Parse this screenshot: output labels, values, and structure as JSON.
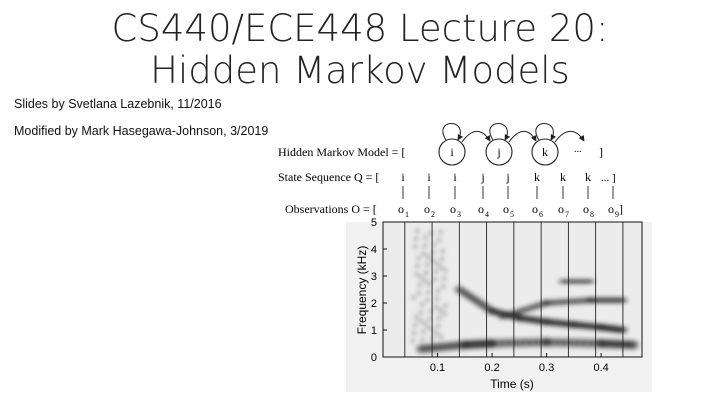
{
  "slide": {
    "title_line1": "CS440/ECE448 Lecture 20:",
    "title_line2": "Hidden Markov Models",
    "credit1": "Slides by Svetlana Lazebnik, 11/2016",
    "credit2": "Modified by Mark Hasegawa-Johnson, 3/2019"
  },
  "figure": {
    "hmm_label": "Hidden Markov Model = [",
    "hmm_close": "]",
    "states": [
      "i",
      "j",
      "k"
    ],
    "ellipsis": "...",
    "state_seq_label": "State Sequence Q = [",
    "state_seq": [
      "i",
      "i",
      "i",
      "j",
      "j",
      "k",
      "k",
      "k"
    ],
    "state_seq_end": "... ]",
    "obs_label": "Observations  O = [",
    "obs_letter": "o",
    "obs_subscripts": [
      "1",
      "2",
      "3",
      "4",
      "5",
      "6",
      "7",
      "8",
      "9"
    ],
    "obs_close": "]"
  },
  "chart_data": {
    "type": "heatmap",
    "xlabel": "Time (s)",
    "ylabel": "Frequency (kHz)",
    "xticks": [
      "0.1",
      "0.2",
      "0.3",
      "0.4"
    ],
    "yticks": [
      "0",
      "1",
      "2",
      "3",
      "4",
      "5"
    ],
    "xlim": [
      0,
      0.475
    ],
    "ylim": [
      0,
      5
    ],
    "frame_boundaries_s": [
      0.04,
      0.09,
      0.14,
      0.19,
      0.24,
      0.29,
      0.34,
      0.39,
      0.44
    ],
    "formant_tracks_khz": [
      {
        "t": [
          0.07,
          0.15,
          0.2,
          0.3,
          0.4,
          0.46
        ],
        "f": [
          0.3,
          0.45,
          0.5,
          0.55,
          0.5,
          0.45
        ]
      },
      {
        "t": [
          0.14,
          0.2,
          0.25,
          0.3,
          0.35,
          0.4,
          0.44
        ],
        "f": [
          2.5,
          1.7,
          1.45,
          1.3,
          1.2,
          1.1,
          1.0
        ]
      },
      {
        "t": [
          0.22,
          0.3,
          0.38,
          0.44
        ],
        "f": [
          1.5,
          2.0,
          2.1,
          2.1
        ]
      },
      {
        "t": [
          0.33,
          0.38
        ],
        "f": [
          2.8,
          2.8
        ]
      }
    ]
  }
}
